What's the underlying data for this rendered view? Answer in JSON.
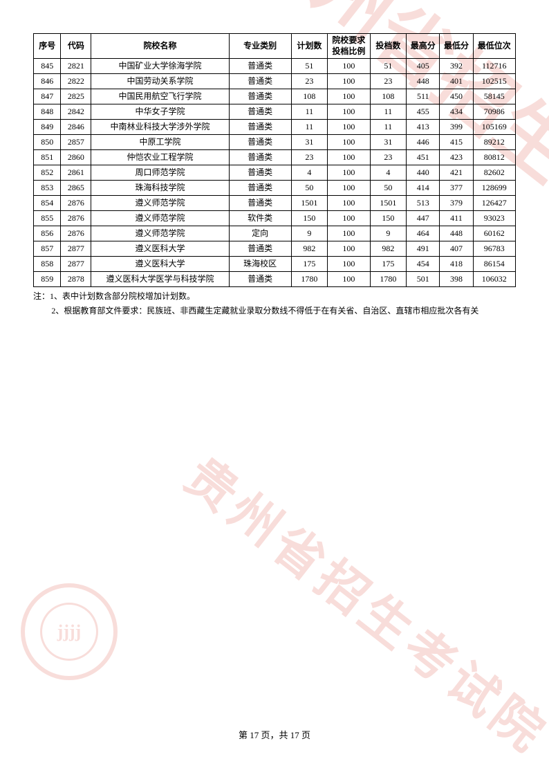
{
  "table": {
    "columns": [
      {
        "key": "seq",
        "label": "序号",
        "class": "col-seq"
      },
      {
        "key": "code",
        "label": "代码",
        "class": "col-code"
      },
      {
        "key": "name",
        "label": "院校名称",
        "class": "col-name"
      },
      {
        "key": "major",
        "label": "专业类别",
        "class": "col-major"
      },
      {
        "key": "plan",
        "label": "计划数",
        "class": "col-plan"
      },
      {
        "key": "ratio",
        "label": "院校要求投档比例",
        "class": "col-ratio"
      },
      {
        "key": "acc",
        "label": "投档数",
        "class": "col-acc"
      },
      {
        "key": "max",
        "label": "最高分",
        "class": "col-max"
      },
      {
        "key": "min",
        "label": "最低分",
        "class": "col-min"
      },
      {
        "key": "rank",
        "label": "最低位次",
        "class": "col-rank"
      }
    ],
    "rows": [
      {
        "seq": "845",
        "code": "2821",
        "name": "中国矿业大学徐海学院",
        "major": "普通类",
        "plan": "51",
        "ratio": "100",
        "acc": "51",
        "max": "405",
        "min": "392",
        "rank": "112716"
      },
      {
        "seq": "846",
        "code": "2822",
        "name": "中国劳动关系学院",
        "major": "普通类",
        "plan": "23",
        "ratio": "100",
        "acc": "23",
        "max": "448",
        "min": "401",
        "rank": "102515"
      },
      {
        "seq": "847",
        "code": "2825",
        "name": "中国民用航空飞行学院",
        "major": "普通类",
        "plan": "108",
        "ratio": "100",
        "acc": "108",
        "max": "511",
        "min": "450",
        "rank": "58145"
      },
      {
        "seq": "848",
        "code": "2842",
        "name": "中华女子学院",
        "major": "普通类",
        "plan": "11",
        "ratio": "100",
        "acc": "11",
        "max": "455",
        "min": "434",
        "rank": "70986"
      },
      {
        "seq": "849",
        "code": "2846",
        "name": "中南林业科技大学涉外学院",
        "major": "普通类",
        "plan": "11",
        "ratio": "100",
        "acc": "11",
        "max": "413",
        "min": "399",
        "rank": "105169"
      },
      {
        "seq": "850",
        "code": "2857",
        "name": "中原工学院",
        "major": "普通类",
        "plan": "31",
        "ratio": "100",
        "acc": "31",
        "max": "446",
        "min": "415",
        "rank": "89212"
      },
      {
        "seq": "851",
        "code": "2860",
        "name": "仲恺农业工程学院",
        "major": "普通类",
        "plan": "23",
        "ratio": "100",
        "acc": "23",
        "max": "451",
        "min": "423",
        "rank": "80812"
      },
      {
        "seq": "852",
        "code": "2861",
        "name": "周口师范学院",
        "major": "普通类",
        "plan": "4",
        "ratio": "100",
        "acc": "4",
        "max": "440",
        "min": "421",
        "rank": "82602"
      },
      {
        "seq": "853",
        "code": "2865",
        "name": "珠海科技学院",
        "major": "普通类",
        "plan": "50",
        "ratio": "100",
        "acc": "50",
        "max": "414",
        "min": "377",
        "rank": "128699"
      },
      {
        "seq": "854",
        "code": "2876",
        "name": "遵义师范学院",
        "major": "普通类",
        "plan": "1501",
        "ratio": "100",
        "acc": "1501",
        "max": "513",
        "min": "379",
        "rank": "126427"
      },
      {
        "seq": "855",
        "code": "2876",
        "name": "遵义师范学院",
        "major": "软件类",
        "plan": "150",
        "ratio": "100",
        "acc": "150",
        "max": "447",
        "min": "411",
        "rank": "93023"
      },
      {
        "seq": "856",
        "code": "2876",
        "name": "遵义师范学院",
        "major": "定向",
        "plan": "9",
        "ratio": "100",
        "acc": "9",
        "max": "464",
        "min": "448",
        "rank": "60162"
      },
      {
        "seq": "857",
        "code": "2877",
        "name": "遵义医科大学",
        "major": "普通类",
        "plan": "982",
        "ratio": "100",
        "acc": "982",
        "max": "491",
        "min": "407",
        "rank": "96783"
      },
      {
        "seq": "858",
        "code": "2877",
        "name": "遵义医科大学",
        "major": "珠海校区",
        "plan": "175",
        "ratio": "100",
        "acc": "175",
        "max": "454",
        "min": "418",
        "rank": "86154"
      },
      {
        "seq": "859",
        "code": "2878",
        "name": "遵义医科大学医学与科技学院",
        "major": "普通类",
        "plan": "1780",
        "ratio": "100",
        "acc": "1780",
        "max": "501",
        "min": "398",
        "rank": "106032"
      }
    ],
    "border_color": "#000000",
    "header_fontsize": 12,
    "cell_fontsize": 12
  },
  "notes": {
    "line1": "注：1、表中计划数含部分院校增加计划数。",
    "line2": "2、根据教育部文件要求：民族班、非西藏生定藏就业录取分数线不得低于在有关省、自治区、直辖市相应批次各有关"
  },
  "footer": {
    "text": "第 17 页，共 17 页"
  },
  "watermarks": {
    "text": "贵州省招生考试院",
    "color": "#d94a3a",
    "opacity": 0.18,
    "seal_inner": "jjjj"
  }
}
